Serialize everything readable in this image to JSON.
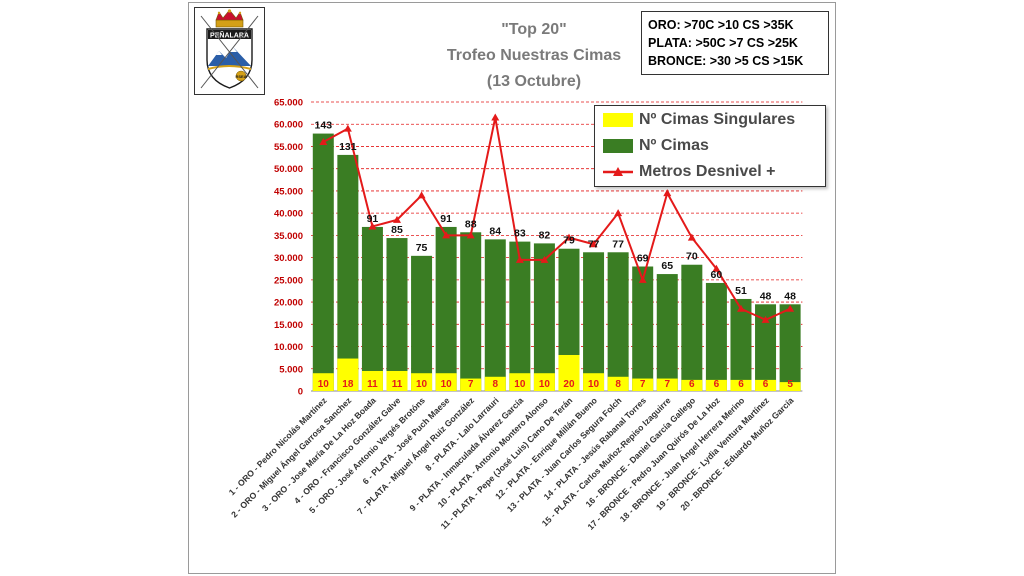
{
  "title": {
    "line1": "\"Top 20\"",
    "line2": "Trofeo Nuestras Cimas",
    "line3": "(13 Octubre)"
  },
  "logo": {
    "text": "PEÑALARA",
    "subtext": "RSEA"
  },
  "criteria": [
    "ORO: >70C >10 CS >35K",
    "PLATA: >50C >7 CS >25K",
    "BRONCE: >30 >5 CS >15K"
  ],
  "legend": {
    "singulares": "Nº Cimas Singulares",
    "cimas": "Nº Cimas",
    "desnivel": "Metros Desnivel +"
  },
  "colors": {
    "bar_green": "#3a7d23",
    "bar_yellow": "#ffff00",
    "line_red": "#e41a1a",
    "singular_label": "#e41a1a",
    "axis_text": "#c00000",
    "grid": "#e41a1a"
  },
  "chart_data": {
    "type": "bar",
    "ylim": [
      0,
      65000
    ],
    "yticks": [
      "0",
      "5.000",
      "10.000",
      "15.000",
      "20.000",
      "25.000",
      "30.000",
      "35.000",
      "40.000",
      "45.000",
      "50.000",
      "55.000",
      "60.000",
      "65.000"
    ],
    "grid": true,
    "legend_position": "top-right",
    "categories": [
      "1 - ORO - Pedro Nicolás Martínez",
      "2 - ORO - Miguel Ángel Garrosa Sanchez",
      "3 - ORO - Jose María De La Hoz Boada",
      "4 - ORO - Francisco González Galve",
      "5 - ORO - José Antonio Vergés Brotóns",
      "6 - PLATA - José Puch Maese",
      "7 - PLATA - Miguel Ángel Ruiz González",
      "8 - PLATA - Lalo Larrauri",
      "9 - PLATA - Inmaculada Álvarez García",
      "10 - PLATA - Antonio Montero Alonso",
      "11 - PLATA - Pepe (José Luis) Cano De Terán",
      "12 - PLATA - Enrique Millán Bueno",
      "13 - PLATA - Juan Carlos Segura Folch",
      "14 - PLATA - Jesús Rabanal Torres",
      "15 - PLATA - Carlos Muñoz-Repiso Izaguirre",
      "16 - BRONCE - Daniel García Gallego",
      "17 - BRONCE - Pedro Juan Quirós De La Hoz",
      "18 - BRONCE - Juan Ángel Herrera Merino",
      "19 - BRONCE - Lydia Ventura Martínez",
      "20 - BRONCE - Eduardo Muñoz García"
    ],
    "series": [
      {
        "name": "Nº Cimas Singulares",
        "values": [
          10,
          18,
          11,
          11,
          10,
          10,
          7,
          8,
          10,
          10,
          20,
          10,
          8,
          7,
          7,
          6,
          6,
          6,
          6,
          5
        ],
        "heights": [
          4000,
          7300,
          4500,
          4500,
          4000,
          4000,
          2800,
          3200,
          4000,
          4000,
          8100,
          4000,
          3200,
          2800,
          2800,
          2500,
          2500,
          2500,
          2500,
          2000
        ]
      },
      {
        "name": "Nº Cimas",
        "values": [
          143,
          131,
          91,
          85,
          75,
          91,
          88,
          84,
          83,
          82,
          79,
          77,
          77,
          69,
          65,
          70,
          60,
          51,
          48,
          48
        ],
        "heights": [
          57900,
          53100,
          36900,
          34400,
          30400,
          36900,
          35700,
          34100,
          33600,
          33200,
          32000,
          31200,
          31200,
          28000,
          26300,
          28400,
          24300,
          20700,
          19500,
          19500
        ]
      },
      {
        "name": "Metros Desnivel +",
        "values": [
          56000,
          59000,
          37000,
          38500,
          44000,
          35000,
          35000,
          61500,
          29500,
          29500,
          34500,
          33000,
          40000,
          25000,
          44500,
          34500,
          27500,
          18500,
          16000,
          18500
        ]
      }
    ]
  }
}
